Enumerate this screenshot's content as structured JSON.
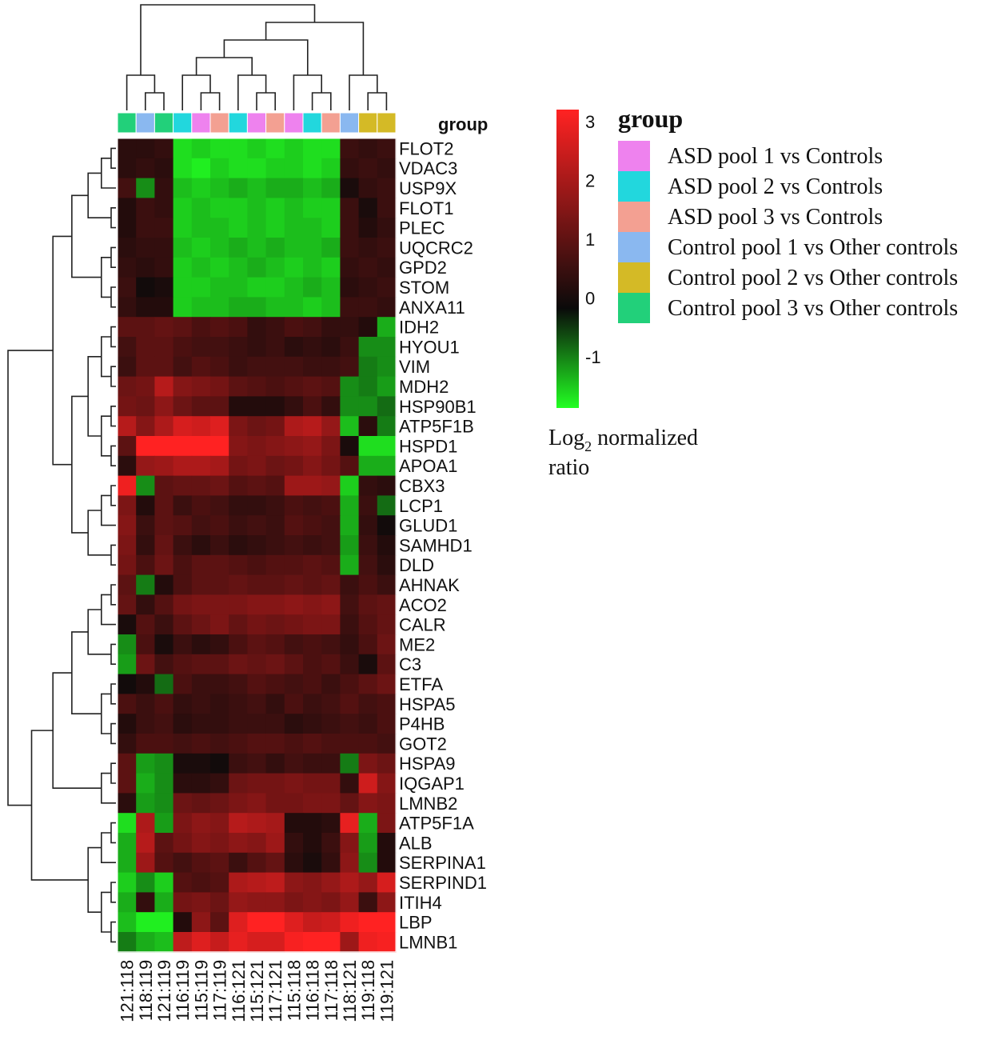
{
  "chart_data": {
    "type": "heatmap",
    "group_label": "group",
    "columns": [
      "121:118",
      "118:119",
      "121:119",
      "116:119",
      "115:119",
      "117:119",
      "116:121",
      "115:121",
      "117:121",
      "115:118",
      "116:118",
      "117:118",
      "118:121",
      "119:118",
      "119:121"
    ],
    "column_groups": [
      "Control pool 3 vs Other controls",
      "Control pool 1 vs Other controls",
      "Control pool 3 vs Other controls",
      "ASD pool 2 vs Controls",
      "ASD pool 1 vs Controls",
      "ASD pool 3 vs Controls",
      "ASD pool 2 vs Controls",
      "ASD pool 1 vs Controls",
      "ASD pool 3 vs Controls",
      "ASD pool 1 vs Controls",
      "ASD pool 2 vs Controls",
      "ASD pool 3 vs Controls",
      "Control pool 1 vs Other controls",
      "Control pool 2 vs Other controls",
      "Control pool 2 vs Other controls"
    ],
    "rows": [
      "FLOT2",
      "VDAC3",
      "USP9X",
      "FLOT1",
      "PLEC",
      "UQCRC2",
      "GPD2",
      "STOM",
      "ANXA11",
      "IDH2",
      "HYOU1",
      "VIM",
      "MDH2",
      "HSP90B1",
      "ATP5F1B",
      "HSPD1",
      "APOA1",
      "CBX3",
      "LCP1",
      "GLUD1",
      "SAMHD1",
      "DLD",
      "AHNAK",
      "ACO2",
      "CALR",
      "ME2",
      "C3",
      "ETFA",
      "HSPA5",
      "P4HB",
      "GOT2",
      "HSPA9",
      "IQGAP1",
      "LMNB2",
      "ATP5F1A",
      "ALB",
      "SERPINA1",
      "SERPIND1",
      "ITIH4",
      "LBP",
      "LMNB1"
    ],
    "values": [
      [
        0.4,
        0.4,
        0.5,
        -1.3,
        -1.2,
        -1.3,
        -1.3,
        -1.2,
        -1.3,
        -1.2,
        -1.3,
        -1.3,
        0.6,
        0.5,
        0.6
      ],
      [
        0.4,
        0.5,
        0.4,
        -1.3,
        -1.4,
        -1.2,
        -1.3,
        -1.3,
        -1.2,
        -1.2,
        -1.3,
        -1.2,
        0.5,
        0.6,
        0.5
      ],
      [
        0.7,
        -0.8,
        0.5,
        -1.1,
        -1.2,
        -1.1,
        -1.0,
        -1.1,
        -1.0,
        -1.0,
        -1.1,
        -1.0,
        0.2,
        0.5,
        0.6
      ],
      [
        0.3,
        0.6,
        0.5,
        -1.2,
        -1.1,
        -1.2,
        -1.2,
        -1.1,
        -1.2,
        -1.1,
        -1.2,
        -1.2,
        0.6,
        0.2,
        0.6
      ],
      [
        0.3,
        0.6,
        0.6,
        -1.2,
        -1.1,
        -1.1,
        -1.2,
        -1.1,
        -1.2,
        -1.1,
        -1.1,
        -1.2,
        0.6,
        0.3,
        0.5
      ],
      [
        0.4,
        0.5,
        0.5,
        -1.1,
        -1.2,
        -1.1,
        -1.0,
        -1.1,
        -1.0,
        -1.1,
        -1.1,
        -1.0,
        0.6,
        0.5,
        0.6
      ],
      [
        0.5,
        0.4,
        0.5,
        -1.2,
        -1.1,
        -1.2,
        -1.1,
        -1.0,
        -1.1,
        -1.2,
        -1.1,
        -1.2,
        0.5,
        0.6,
        0.5
      ],
      [
        0.6,
        0.1,
        0.2,
        -1.2,
        -1.2,
        -1.1,
        -1.1,
        -1.2,
        -1.2,
        -1.1,
        -1.0,
        -1.1,
        0.4,
        0.5,
        0.6
      ],
      [
        0.5,
        0.3,
        0.3,
        -1.2,
        -1.1,
        -1.1,
        -1.0,
        -1.0,
        -1.1,
        -1.1,
        -1.2,
        -1.1,
        0.6,
        0.6,
        0.5
      ],
      [
        1.0,
        1.0,
        1.1,
        1.0,
        0.8,
        0.9,
        0.8,
        0.5,
        0.6,
        0.8,
        0.7,
        0.5,
        0.5,
        0.3,
        -1.0
      ],
      [
        0.7,
        1.0,
        1.0,
        0.8,
        0.7,
        0.7,
        0.6,
        0.5,
        0.6,
        0.4,
        0.5,
        0.4,
        0.6,
        -0.8,
        -0.8
      ],
      [
        0.6,
        1.0,
        1.0,
        0.7,
        0.9,
        0.8,
        0.6,
        0.7,
        0.7,
        0.7,
        0.6,
        0.6,
        0.7,
        -0.7,
        -0.8
      ],
      [
        1.2,
        1.3,
        2.1,
        1.5,
        1.4,
        1.3,
        1.0,
        0.9,
        0.8,
        0.9,
        1.0,
        0.9,
        -0.8,
        -0.7,
        -0.9
      ],
      [
        1.3,
        1.2,
        1.6,
        1.2,
        1.0,
        1.0,
        0.3,
        0.3,
        0.3,
        0.5,
        0.8,
        0.5,
        -0.8,
        -0.8,
        -0.6
      ],
      [
        2.1,
        1.5,
        2.0,
        2.5,
        2.4,
        2.6,
        1.4,
        1.2,
        1.3,
        2.0,
        2.1,
        1.7,
        -1.1,
        0.4,
        -0.7
      ],
      [
        1.0,
        3.0,
        3.0,
        3.0,
        3.0,
        3.0,
        1.5,
        1.4,
        1.5,
        1.6,
        1.7,
        1.4,
        0.2,
        -1.3,
        -1.3
      ],
      [
        0.4,
        1.7,
        1.8,
        2.0,
        2.0,
        1.9,
        1.3,
        1.4,
        1.2,
        1.3,
        1.5,
        1.3,
        0.9,
        -1.0,
        -1.0
      ],
      [
        2.8,
        -0.8,
        1.0,
        1.1,
        1.1,
        1.2,
        0.9,
        1.0,
        0.9,
        1.8,
        1.8,
        1.7,
        -1.2,
        0.5,
        0.4
      ],
      [
        1.4,
        0.3,
        1.0,
        0.6,
        0.8,
        0.7,
        0.5,
        0.5,
        0.6,
        0.8,
        0.7,
        0.8,
        -1.0,
        0.6,
        -0.6
      ],
      [
        1.5,
        0.6,
        1.0,
        0.9,
        0.7,
        0.8,
        0.6,
        0.7,
        0.6,
        0.9,
        0.8,
        0.7,
        -1.0,
        0.5,
        0.1
      ],
      [
        1.4,
        0.5,
        1.1,
        0.6,
        0.4,
        0.6,
        0.4,
        0.5,
        0.6,
        0.7,
        0.6,
        0.7,
        -0.9,
        0.6,
        0.3
      ],
      [
        1.3,
        0.8,
        1.2,
        0.8,
        1.0,
        1.0,
        0.9,
        0.8,
        0.9,
        0.9,
        1.0,
        0.9,
        -1.0,
        0.7,
        0.4
      ],
      [
        1.0,
        -0.7,
        0.3,
        0.8,
        1.0,
        1.0,
        1.1,
        1.0,
        1.0,
        1.1,
        1.0,
        1.1,
        0.6,
        0.8,
        0.6
      ],
      [
        1.1,
        0.5,
        0.9,
        1.3,
        1.4,
        1.4,
        1.4,
        1.5,
        1.5,
        1.6,
        1.5,
        1.6,
        0.7,
        1.0,
        1.1
      ],
      [
        0.2,
        0.9,
        0.6,
        1.0,
        1.2,
        1.4,
        1.1,
        1.3,
        1.2,
        1.3,
        1.4,
        1.4,
        0.6,
        0.9,
        1.1
      ],
      [
        -0.8,
        0.8,
        0.2,
        0.6,
        0.4,
        0.5,
        0.8,
        1.0,
        0.9,
        0.7,
        0.8,
        0.7,
        0.5,
        0.8,
        1.2
      ],
      [
        -0.9,
        1.2,
        0.7,
        0.9,
        1.0,
        1.0,
        1.2,
        1.1,
        1.2,
        1.0,
        0.8,
        0.9,
        0.6,
        0.2,
        1.0
      ],
      [
        0.1,
        0.3,
        -0.6,
        0.8,
        0.6,
        0.6,
        0.7,
        0.9,
        0.8,
        0.7,
        0.8,
        0.6,
        0.8,
        1.0,
        1.2
      ],
      [
        0.8,
        0.6,
        0.8,
        0.5,
        0.6,
        0.5,
        0.6,
        0.7,
        0.5,
        0.8,
        0.6,
        0.7,
        0.9,
        0.7,
        0.8
      ],
      [
        0.3,
        0.6,
        0.7,
        0.4,
        0.5,
        0.5,
        0.6,
        0.6,
        0.6,
        0.4,
        0.5,
        0.6,
        0.7,
        0.6,
        0.8
      ],
      [
        0.5,
        0.8,
        0.8,
        0.7,
        0.8,
        0.7,
        0.8,
        0.9,
        0.9,
        0.8,
        0.9,
        0.8,
        0.8,
        0.8,
        0.7
      ],
      [
        1.0,
        -0.9,
        -0.8,
        0.2,
        0.2,
        0.1,
        0.6,
        0.7,
        0.5,
        0.7,
        0.6,
        0.6,
        -0.7,
        1.4,
        1.2
      ],
      [
        1.0,
        -1.0,
        -0.8,
        0.4,
        0.4,
        0.5,
        1.2,
        1.3,
        1.3,
        1.4,
        1.3,
        1.3,
        0.5,
        2.4,
        1.5
      ],
      [
        0.4,
        -0.9,
        -0.8,
        1.2,
        1.1,
        1.2,
        1.4,
        1.5,
        1.3,
        1.3,
        1.4,
        1.4,
        1.1,
        1.5,
        1.4
      ],
      [
        -1.3,
        2.0,
        -0.9,
        1.4,
        1.6,
        1.5,
        2.1,
        2.0,
        1.9,
        0.3,
        0.3,
        0.4,
        2.7,
        -1.0,
        1.4
      ],
      [
        -1.0,
        2.1,
        1.0,
        1.3,
        1.5,
        1.4,
        1.6,
        1.5,
        1.8,
        0.5,
        0.3,
        0.6,
        1.5,
        -0.9,
        0.3
      ],
      [
        -1.0,
        1.8,
        0.9,
        0.7,
        0.9,
        1.0,
        0.6,
        0.9,
        1.1,
        0.4,
        0.2,
        0.5,
        1.6,
        -0.8,
        0.3
      ],
      [
        -1.2,
        -0.8,
        -1.2,
        0.9,
        0.8,
        0.9,
        2.0,
        2.1,
        2.2,
        1.6,
        1.5,
        1.7,
        2.0,
        1.7,
        2.5
      ],
      [
        -1.0,
        0.5,
        -1.0,
        1.3,
        1.4,
        1.2,
        1.7,
        1.6,
        1.6,
        1.4,
        1.5,
        1.4,
        1.7,
        0.6,
        1.6
      ],
      [
        -1.1,
        -1.4,
        -1.4,
        0.3,
        1.6,
        1.0,
        2.6,
        3.0,
        3.0,
        2.6,
        2.3,
        2.4,
        2.8,
        3.0,
        3.0
      ],
      [
        -0.7,
        -1.0,
        -1.1,
        2.2,
        2.6,
        2.3,
        2.7,
        2.5,
        2.5,
        2.9,
        3.0,
        3.0,
        1.8,
        2.8,
        2.9
      ]
    ],
    "row_clusters": [
      [
        0,
        8
      ],
      [
        9,
        16
      ],
      [
        17,
        21
      ],
      [
        22,
        30
      ],
      [
        31,
        33
      ],
      [
        34,
        36
      ],
      [
        37,
        40
      ]
    ],
    "colorbar": {
      "ticks": [
        "3",
        "2",
        "1",
        "0",
        "-1"
      ],
      "tick_values": [
        3,
        2,
        1,
        0,
        -1
      ],
      "range": [
        -1.5,
        3.0
      ],
      "colors": {
        "low": "#22ff22",
        "mid": "#0a0a0a",
        "high": "#ff2222"
      },
      "title_main": "Log",
      "title_sub": "2",
      "title_rest": " normalized",
      "title_line2": "ratio"
    },
    "legend": {
      "title": "group",
      "items": [
        {
          "label": "ASD pool 1 vs Controls",
          "color": "#ee82ee"
        },
        {
          "label": "ASD pool 2 vs Controls",
          "color": "#22d7dd"
        },
        {
          "label": "ASD pool 3 vs Controls",
          "color": "#f3a092"
        },
        {
          "label": "Control pool 1 vs Other controls",
          "color": "#8ab8f0"
        },
        {
          "label": "Control pool 2 vs Other controls",
          "color": "#d4ba26"
        },
        {
          "label": "Control pool 3 vs Other controls",
          "color": "#22d07a"
        }
      ]
    }
  }
}
